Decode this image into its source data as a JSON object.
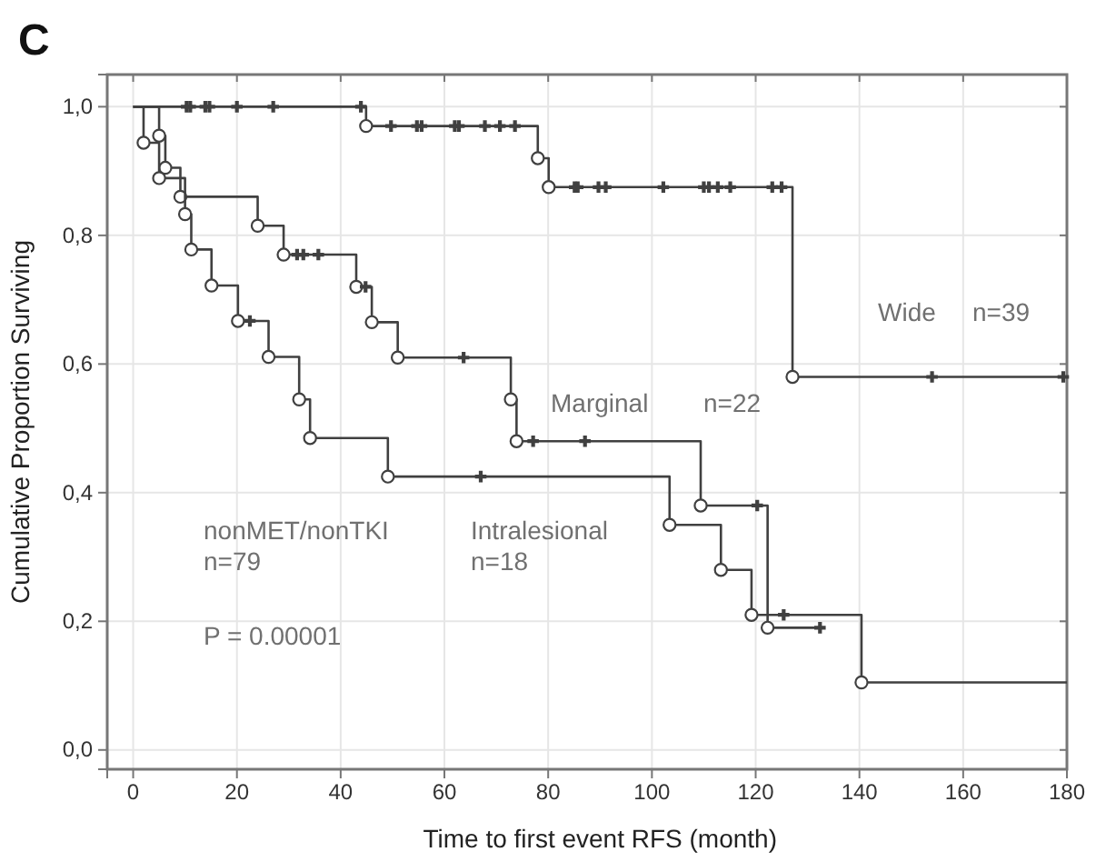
{
  "chart_data": {
    "type": "step",
    "title": "C",
    "xlabel": "Time to first event RFS (month)",
    "ylabel": "Cumulative Proportion Surviving",
    "xlim": [
      -5,
      180
    ],
    "xticks": [
      0,
      20,
      40,
      60,
      80,
      100,
      120,
      140,
      160,
      180
    ],
    "ylim": [
      -0.03,
      1.05
    ],
    "yticks": [
      {
        "value": 0,
        "label": "0,0"
      },
      {
        "value": 0.2,
        "label": "0,2"
      },
      {
        "value": 0.4,
        "label": "0,4"
      },
      {
        "value": 0.6,
        "label": "0,6"
      },
      {
        "value": 0.8,
        "label": "0,8"
      },
      {
        "value": 1,
        "label": "1,0"
      }
    ],
    "grid": true,
    "marker": "circle",
    "line_style": "solid",
    "series": [
      {
        "color": "#404040",
        "x": [
          0,
          44.9,
          78,
          80.1,
          127.1,
          180
        ],
        "values": [
          1,
          0.97,
          0.92,
          0.875,
          0.58,
          0.58
        ]
      },
      {
        "color": "#404040",
        "x": [
          0,
          5,
          6.2,
          9.1,
          24,
          29,
          43,
          46,
          51,
          72.8,
          73.9,
          109.4,
          122.3,
          132.4
        ],
        "values": [
          1,
          0.955,
          0.905,
          0.86,
          0.815,
          0.77,
          0.72,
          0.665,
          0.61,
          0.545,
          0.48,
          0.38,
          0.19,
          0.19
        ]
      },
      {
        "color": "#404040",
        "x": [
          0,
          2,
          5,
          10,
          11.2,
          15.1,
          20.2,
          26.1,
          32,
          34.1,
          49.1,
          103.4,
          113.3,
          119.2,
          140.4,
          180
        ],
        "values": [
          1,
          0.944,
          0.889,
          0.833,
          0.778,
          0.722,
          0.667,
          0.611,
          0.545,
          0.485,
          0.425,
          0.35,
          0.28,
          0.21,
          0.105,
          0.105
        ]
      },
      {
        "type": "scatter",
        "marker": "cross",
        "color": "#404040",
        "x": [
          10.3,
          11,
          13.9,
          14.7,
          20,
          27,
          43.9,
          49.7,
          54.7,
          55.6,
          62,
          62.8,
          67.8,
          70.7,
          73.6,
          85.1,
          85.7,
          89.7,
          91.1,
          102.2,
          110,
          111,
          112.7,
          115.1,
          123.2,
          125,
          154,
          179.3
        ],
        "values": [
          1,
          1,
          1,
          1,
          1,
          1,
          1,
          0.97,
          0.97,
          0.97,
          0.97,
          0.97,
          0.97,
          0.97,
          0.97,
          0.875,
          0.875,
          0.875,
          0.875,
          0.875,
          0.875,
          0.875,
          0.875,
          0.875,
          0.875,
          0.875,
          0.58,
          0.58
        ]
      },
      {
        "type": "scatter",
        "marker": "cross",
        "color": "#404040",
        "x": [
          31.6,
          32.8,
          35.7,
          44.8,
          63.7,
          77.1,
          87.1,
          120.3,
          132.4
        ],
        "values": [
          0.77,
          0.77,
          0.77,
          0.72,
          0.61,
          0.48,
          0.48,
          0.38,
          0.19
        ]
      },
      {
        "type": "scatter",
        "marker": "cross",
        "color": "#404040",
        "x": [
          22.5,
          67,
          125.4
        ],
        "values": [
          0.667,
          0.425,
          0.21
        ]
      }
    ],
    "annotations": [
      "Wide",
      "n=39",
      "Marginal",
      "n=22",
      "nonMET/nonTKI",
      "n=79",
      "Intralesional",
      "n=18",
      "P = 0.00001"
    ]
  }
}
